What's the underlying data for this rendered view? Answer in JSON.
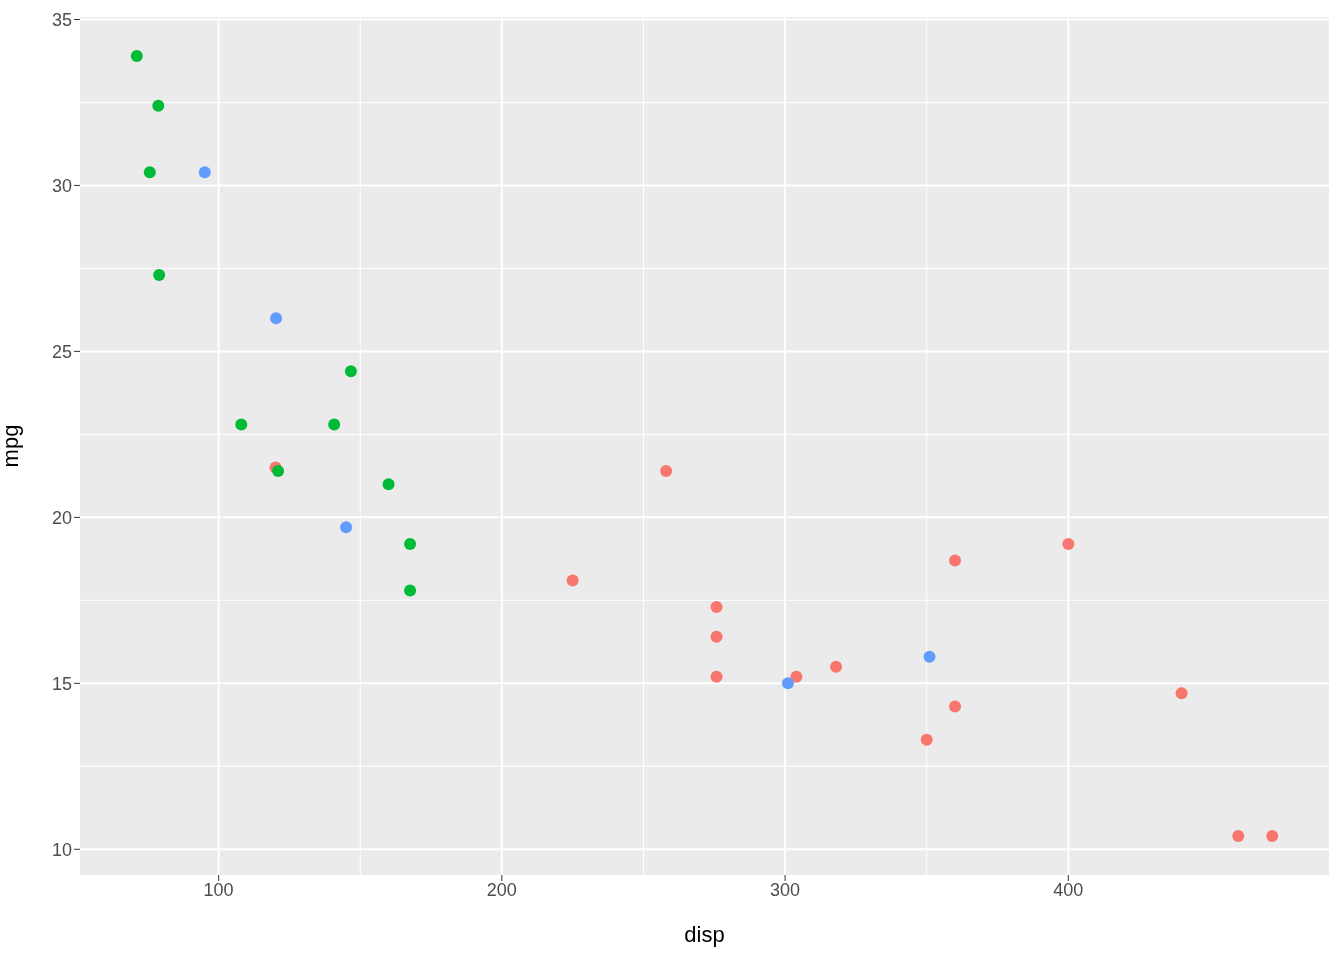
{
  "chart_data": {
    "type": "scatter",
    "xlabel": "disp",
    "ylabel": "mpg",
    "xlim": [
      51.055,
      492.045
    ],
    "xticks": [
      100,
      200,
      300,
      400
    ],
    "ylim": [
      9.225,
      35.075
    ],
    "yticks": [
      10,
      15,
      20,
      25,
      30,
      35
    ],
    "grid": true,
    "legend": false,
    "marker": "circle",
    "series": [
      {
        "color": "#f8766d",
        "x": [
          258,
          360,
          225,
          360,
          275.8,
          275.8,
          275.8,
          472,
          460,
          440,
          120.1,
          318,
          304,
          350,
          400
        ],
        "values": [
          21.4,
          18.7,
          18.1,
          14.3,
          16.4,
          17.3,
          15.2,
          10.4,
          10.4,
          14.7,
          21.5,
          15.5,
          15.2,
          13.3,
          19.2
        ]
      },
      {
        "color": "#00ba38",
        "x": [
          160,
          108,
          146.7,
          140.8,
          167.6,
          167.6,
          78.7,
          75.7,
          71.1,
          79,
          121
        ],
        "values": [
          21.0,
          22.8,
          24.4,
          22.8,
          19.2,
          17.8,
          32.4,
          30.4,
          33.9,
          27.3,
          21.4
        ]
      },
      {
        "color": "#619cff",
        "x": [
          120.3,
          95.1,
          351,
          145,
          301
        ],
        "values": [
          26.0,
          30.4,
          15.8,
          19.7,
          15.0
        ]
      }
    ]
  }
}
